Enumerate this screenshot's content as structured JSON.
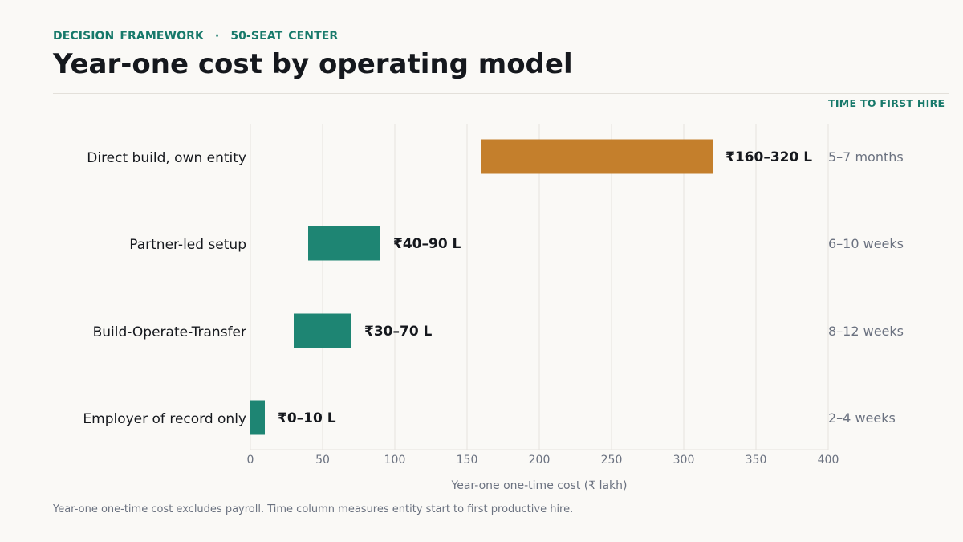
{
  "header": {
    "eyebrow_left": "DECISION  FRAMEWORK",
    "eyebrow_sep": "·",
    "eyebrow_right": "50-SEAT  CENTER",
    "title": "Year-one cost by operating model"
  },
  "time_column": {
    "header": "TIME TO FIRST HIRE"
  },
  "footnote": "Year-one one-time cost excludes payroll. Time column measures entity start to first productive hire.",
  "colors": {
    "accent_teal": "#17796a",
    "bar_teal": "#1e8573",
    "bar_orange": "#c47f2c",
    "grid": "#e6e3de",
    "tick_text": "#6b7280",
    "label_text": "#15181d"
  },
  "chart_data": {
    "type": "bar",
    "orientation": "horizontal-range",
    "xlabel": "Year-one one-time cost (₹ lakh)",
    "xlim": [
      0,
      400
    ],
    "xticks": [
      0,
      50,
      100,
      150,
      200,
      250,
      300,
      350,
      400
    ],
    "grid": true,
    "categories": [
      "Direct build, own entity",
      "Partner-led setup",
      "Build-Operate-Transfer",
      "Employer of record only"
    ],
    "series": [
      {
        "ranges": [
          [
            160,
            320
          ],
          [
            40,
            90
          ],
          [
            30,
            70
          ],
          [
            0,
            10
          ]
        ],
        "data_labels": [
          "₹160–320 L",
          "₹40–90 L",
          "₹30–70 L",
          "₹0–10 L"
        ],
        "colors": [
          "#c47f2c",
          "#1e8573",
          "#1e8573",
          "#1e8573"
        ]
      }
    ],
    "time_to_first_hire": [
      "5–7 months",
      "6–10 weeks",
      "8–12 weeks",
      "2–4 weeks"
    ]
  }
}
